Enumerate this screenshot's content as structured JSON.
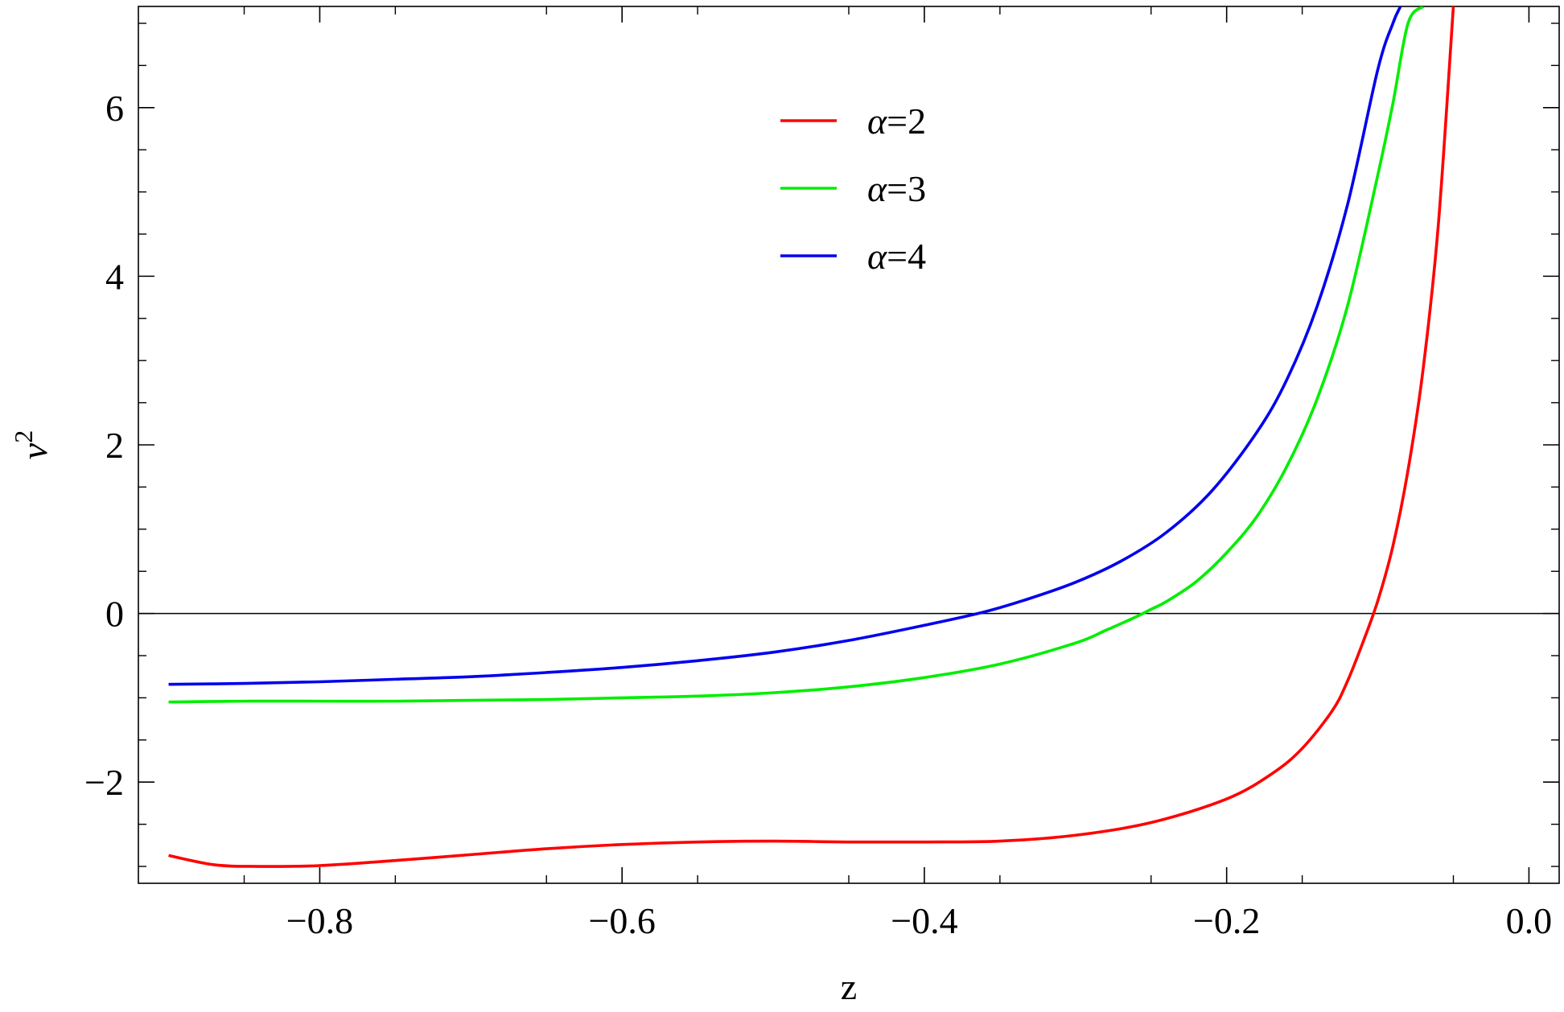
{
  "chart_data": {
    "type": "line",
    "xlabel": "z",
    "ylabel": "v",
    "ylabel_superscript": "2",
    "xlim": [
      -0.92,
      0.02
    ],
    "ylim": [
      -3.2,
      7.2
    ],
    "x_ticks": [
      -0.8,
      -0.6,
      -0.4,
      -0.2,
      0.0
    ],
    "x_tick_labels": [
      "−0.8",
      "−0.6",
      "−0.4",
      "−0.2",
      "0.0"
    ],
    "y_ticks": [
      -2,
      0,
      2,
      4,
      6
    ],
    "y_tick_labels": [
      "−2",
      "0",
      "2",
      "4",
      "6"
    ],
    "reference_line": {
      "y": 0,
      "color": "#000000"
    },
    "legend_position": "top-center",
    "series": [
      {
        "name": "α=2",
        "color": "#ff0000",
        "x": [
          -0.9,
          -0.87,
          -0.84,
          -0.8,
          -0.75,
          -0.7,
          -0.65,
          -0.6,
          -0.55,
          -0.5,
          -0.45,
          -0.4,
          -0.35,
          -0.3,
          -0.25,
          -0.2,
          -0.17,
          -0.15,
          -0.13,
          -0.12,
          -0.11,
          -0.1,
          -0.09,
          -0.08,
          -0.07,
          -0.06,
          -0.05
        ],
        "y": [
          -2.87,
          -2.98,
          -3.0,
          -2.99,
          -2.93,
          -2.86,
          -2.79,
          -2.74,
          -2.71,
          -2.7,
          -2.71,
          -2.71,
          -2.7,
          -2.63,
          -2.48,
          -2.2,
          -1.9,
          -1.6,
          -1.15,
          -0.8,
          -0.35,
          0.15,
          0.8,
          1.7,
          2.9,
          4.6,
          7.2
        ]
      },
      {
        "name": "α=3",
        "color": "#00ee00",
        "x": [
          -0.9,
          -0.85,
          -0.8,
          -0.75,
          -0.7,
          -0.65,
          -0.6,
          -0.55,
          -0.5,
          -0.45,
          -0.4,
          -0.35,
          -0.3,
          -0.28,
          -0.26,
          -0.25,
          -0.24,
          -0.22,
          -0.2,
          -0.18,
          -0.16,
          -0.14,
          -0.12,
          -0.1,
          -0.09,
          -0.08,
          -0.07
        ],
        "y": [
          -1.05,
          -1.04,
          -1.04,
          -1.04,
          -1.03,
          -1.02,
          -1.0,
          -0.98,
          -0.94,
          -0.87,
          -0.76,
          -0.6,
          -0.35,
          -0.2,
          -0.04,
          0.05,
          0.14,
          0.38,
          0.72,
          1.15,
          1.75,
          2.55,
          3.65,
          5.2,
          6.05,
          7.0,
          7.2
        ]
      },
      {
        "name": "α=4",
        "color": "#0000ee",
        "x": [
          -0.9,
          -0.85,
          -0.8,
          -0.75,
          -0.7,
          -0.65,
          -0.6,
          -0.55,
          -0.5,
          -0.45,
          -0.4,
          -0.36,
          -0.33,
          -0.3,
          -0.27,
          -0.24,
          -0.21,
          -0.18,
          -0.16,
          -0.14,
          -0.12,
          -0.1,
          -0.09,
          -0.085
        ],
        "y": [
          -0.84,
          -0.83,
          -0.81,
          -0.78,
          -0.75,
          -0.7,
          -0.64,
          -0.56,
          -0.46,
          -0.32,
          -0.14,
          0.02,
          0.18,
          0.37,
          0.62,
          0.96,
          1.45,
          2.15,
          2.78,
          3.65,
          4.85,
          6.45,
          7.0,
          7.2
        ]
      }
    ]
  }
}
